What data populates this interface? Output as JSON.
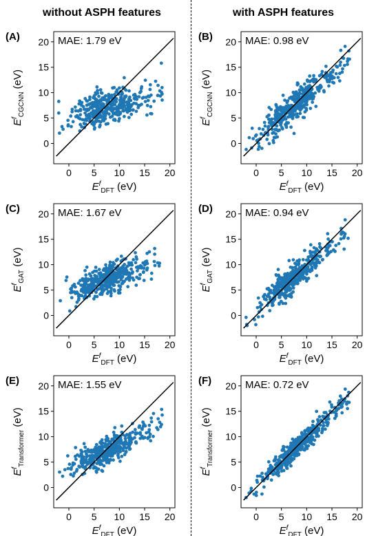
{
  "columns": {
    "left_title": "without ASPH features",
    "right_title": "with ASPH features"
  },
  "point_color": "#1f77b4",
  "chart_data": [
    {
      "type": "scatter",
      "panel": "(A)",
      "mae": "MAE: 1.79 eV",
      "ylabel_main": "E",
      "ylabel_sup": "f",
      "ylabel_sub": "CGCNN",
      "ylabel_unit": "(eV)",
      "xlabel_main": "E",
      "xlabel_sup": "f",
      "xlabel_sub": "DFT",
      "xlabel_unit": "(eV)",
      "xlim": [
        -3,
        21
      ],
      "ylim": [
        -4,
        22
      ],
      "xticks": [
        "0",
        "5",
        "10",
        "15",
        "20"
      ],
      "yticks": [
        "0",
        "5",
        "10",
        "15",
        "20"
      ],
      "spread": 0.25,
      "noise": 1.6,
      "seed": 11,
      "n": 420
    },
    {
      "type": "scatter",
      "panel": "(B)",
      "mae": "MAE: 0.98 eV",
      "ylabel_main": "E",
      "ylabel_sup": "f",
      "ylabel_sub": "CGCNN",
      "ylabel_unit": "(eV)",
      "xlabel_main": "E",
      "xlabel_sup": "f",
      "xlabel_sub": "DFT",
      "xlabel_unit": "(eV)",
      "xlim": [
        -3,
        21
      ],
      "ylim": [
        -4,
        22
      ],
      "xticks": [
        "0",
        "5",
        "10",
        "15",
        "20"
      ],
      "yticks": [
        "0",
        "5",
        "10",
        "15",
        "20"
      ],
      "spread": 0.85,
      "noise": 1.5,
      "seed": 23,
      "n": 420
    },
    {
      "type": "scatter",
      "panel": "(C)",
      "mae": "MAE: 1.67 eV",
      "ylabel_main": "E",
      "ylabel_sup": "f",
      "ylabel_sub": "GAT",
      "ylabel_unit": "(eV)",
      "xlabel_main": "E",
      "xlabel_sup": "f",
      "xlabel_sub": "DFT",
      "xlabel_unit": "(eV)",
      "xlim": [
        -3,
        21
      ],
      "ylim": [
        -4,
        22
      ],
      "xticks": [
        "0",
        "5",
        "10",
        "15",
        "20"
      ],
      "yticks": [
        "0",
        "5",
        "10",
        "15",
        "20"
      ],
      "spread": 0.35,
      "noise": 1.5,
      "seed": 37,
      "n": 420
    },
    {
      "type": "scatter",
      "panel": "(D)",
      "mae": "MAE: 0.94 eV",
      "ylabel_main": "E",
      "ylabel_sup": "f",
      "ylabel_sub": "GAT",
      "ylabel_unit": "(eV)",
      "xlabel_main": "E",
      "xlabel_sup": "f",
      "xlabel_sub": "DFT",
      "xlabel_unit": "(eV)",
      "xlim": [
        -3,
        21
      ],
      "ylim": [
        -4,
        22
      ],
      "xticks": [
        "0",
        "5",
        "10",
        "15",
        "20"
      ],
      "yticks": [
        "0",
        "5",
        "10",
        "15",
        "20"
      ],
      "spread": 0.85,
      "noise": 1.4,
      "seed": 41,
      "n": 420
    },
    {
      "type": "scatter",
      "panel": "(E)",
      "mae": "MAE: 1.55 eV",
      "ylabel_main": "E",
      "ylabel_sup": "f",
      "ylabel_sub": "Transformer",
      "ylabel_unit": "(eV)",
      "xlabel_main": "E",
      "xlabel_sup": "f",
      "xlabel_sub": "DFT",
      "xlabel_unit": "(eV)",
      "xlim": [
        -3,
        21
      ],
      "ylim": [
        -4,
        22
      ],
      "xticks": [
        "0",
        "5",
        "10",
        "15",
        "20"
      ],
      "yticks": [
        "0",
        "5",
        "10",
        "15",
        "20"
      ],
      "spread": 0.45,
      "noise": 1.4,
      "seed": 53,
      "n": 420
    },
    {
      "type": "scatter",
      "panel": "(F)",
      "mae": "MAE: 0.72 eV",
      "ylabel_main": "E",
      "ylabel_sup": "f",
      "ylabel_sub": "Transformer",
      "ylabel_unit": "(eV)",
      "xlabel_main": "E",
      "xlabel_sup": "f",
      "xlabel_sub": "DFT",
      "xlabel_unit": "(eV)",
      "xlim": [
        -3,
        21
      ],
      "ylim": [
        -4,
        22
      ],
      "xticks": [
        "0",
        "5",
        "10",
        "15",
        "20"
      ],
      "yticks": [
        "0",
        "5",
        "10",
        "15",
        "20"
      ],
      "spread": 0.92,
      "noise": 1.0,
      "seed": 67,
      "n": 420
    }
  ]
}
